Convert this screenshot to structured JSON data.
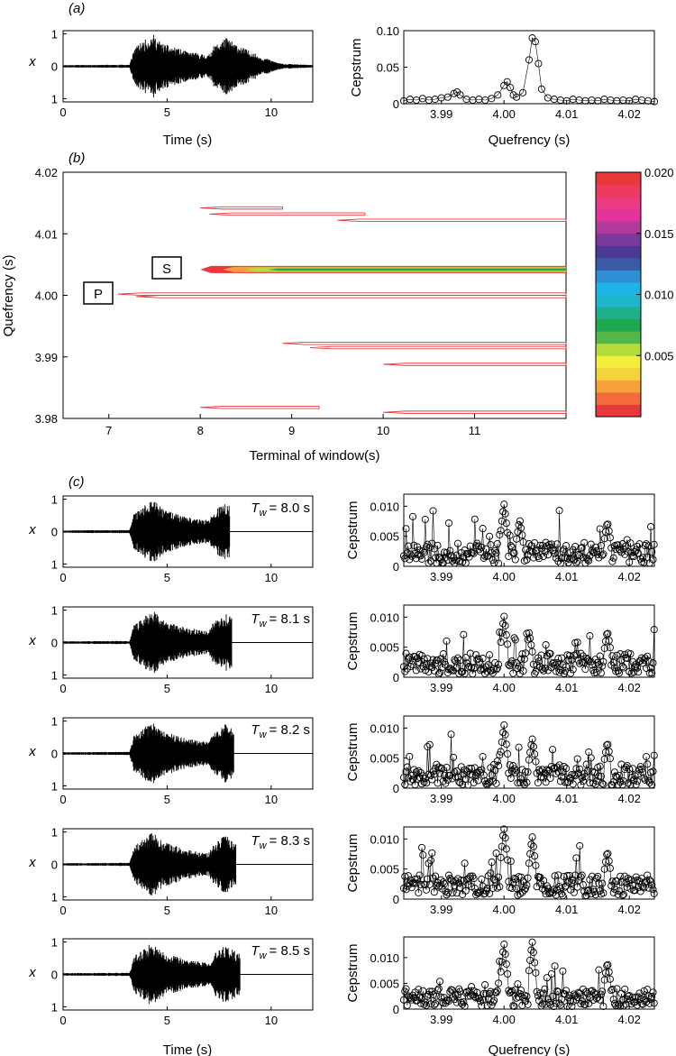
{
  "panel_labels": {
    "a": "(a)",
    "b": "(b)",
    "c": "(c)"
  },
  "chart_data": [
    {
      "id": "a-time",
      "type": "line",
      "xlabel": "Time (s)",
      "ylabel": "x",
      "xlim": [
        0,
        12
      ],
      "ylim": [
        -1.1,
        1.1
      ],
      "xticks": [
        "0",
        "5",
        "10"
      ],
      "yticks": [
        "1",
        "0",
        "1"
      ],
      "signal_end_s": 12,
      "envelope": [
        {
          "t": 0,
          "a": 0.04
        },
        {
          "t": 3.2,
          "a": 0.05
        },
        {
          "t": 3.4,
          "a": 0.55
        },
        {
          "t": 4.0,
          "a": 0.85
        },
        {
          "t": 4.3,
          "a": 1.0
        },
        {
          "t": 4.8,
          "a": 0.7
        },
        {
          "t": 6.0,
          "a": 0.45
        },
        {
          "t": 7.0,
          "a": 0.35
        },
        {
          "t": 7.2,
          "a": 0.6
        },
        {
          "t": 7.8,
          "a": 0.9
        },
        {
          "t": 8.3,
          "a": 0.7
        },
        {
          "t": 9.5,
          "a": 0.3
        },
        {
          "t": 10.5,
          "a": 0.08
        },
        {
          "t": 12,
          "a": 0.04
        }
      ]
    },
    {
      "id": "a-cepstrum",
      "type": "line",
      "xlabel": "Quefrency (s)",
      "ylabel": "Cepstrum",
      "xlim": [
        3.984,
        4.024
      ],
      "ylim": [
        0,
        0.1
      ],
      "xticks": [
        "3.99",
        "4.00",
        "4.01",
        "4.02"
      ],
      "yticks": [
        "0",
        "0.05",
        "0.10"
      ],
      "x": [
        3.984,
        3.985,
        3.986,
        3.987,
        3.988,
        3.989,
        3.99,
        3.991,
        3.992,
        3.9925,
        3.993,
        3.994,
        3.995,
        3.996,
        3.997,
        3.998,
        3.999,
        4.0,
        4.0005,
        4.001,
        4.0015,
        4.002,
        4.003,
        4.004,
        4.0045,
        4.005,
        4.0055,
        4.006,
        4.007,
        4.008,
        4.009,
        4.01,
        4.011,
        4.012,
        4.013,
        4.014,
        4.015,
        4.016,
        4.017,
        4.018,
        4.019,
        4.02,
        4.021,
        4.022,
        4.023,
        4.024
      ],
      "y": [
        0.004,
        0.006,
        0.005,
        0.007,
        0.005,
        0.006,
        0.008,
        0.009,
        0.014,
        0.016,
        0.012,
        0.006,
        0.005,
        0.006,
        0.005,
        0.007,
        0.012,
        0.025,
        0.03,
        0.022,
        0.012,
        0.009,
        0.015,
        0.06,
        0.09,
        0.085,
        0.055,
        0.02,
        0.008,
        0.006,
        0.005,
        0.004,
        0.006,
        0.005,
        0.004,
        0.005,
        0.004,
        0.006,
        0.005,
        0.004,
        0.005,
        0.004,
        0.006,
        0.005,
        0.004,
        0.003
      ]
    },
    {
      "id": "b-contour",
      "type": "heatmap",
      "xlabel": "Terminal of window(s)",
      "ylabel": "Quefrency (s)",
      "xlim": [
        6.5,
        12.0
      ],
      "ylim": [
        3.98,
        4.02
      ],
      "xticks": [
        "7",
        "8",
        "9",
        "10",
        "11"
      ],
      "yticks": [
        "4.02",
        "4.01",
        "4.00",
        "3.99",
        "3.98"
      ],
      "annotations": [
        "P",
        "S"
      ],
      "colorbar": {
        "min": 0,
        "max": 0.02,
        "ticks": [
          "0.020",
          "0.015",
          "0.010",
          "0.005"
        ],
        "colors": [
          "#e8383c",
          "#f26b3a",
          "#f7a03c",
          "#f3d23c",
          "#f4ee3c",
          "#b4db3c",
          "#54b848",
          "#1fa84f",
          "#1faf8c",
          "#1fb6cc",
          "#1fb4e6",
          "#2e8ed6",
          "#3a5aa8",
          "#4a3a94",
          "#7a3a9c",
          "#b23a9c",
          "#e2349c",
          "#ea3a80",
          "#ee3a60",
          "#e8383c"
        ]
      },
      "bands": [
        {
          "q": 4.0142,
          "start": 8.0,
          "end": 8.9,
          "level": "low"
        },
        {
          "q": 4.0122,
          "start": 9.5,
          "end": 12.0,
          "level": "low"
        },
        {
          "q": 4.0132,
          "start": 8.1,
          "end": 9.8,
          "level": "low"
        },
        {
          "q": 4.0042,
          "start": 8.0,
          "end": 12.0,
          "level": "high"
        },
        {
          "q": 4.0002,
          "start": 7.1,
          "end": 12.0,
          "level": "low"
        },
        {
          "q": 3.9998,
          "start": 7.3,
          "end": 12.0,
          "level": "low"
        },
        {
          "q": 3.9922,
          "start": 8.9,
          "end": 12.0,
          "level": "low"
        },
        {
          "q": 3.9915,
          "start": 9.2,
          "end": 12.0,
          "level": "low"
        },
        {
          "q": 3.9888,
          "start": 10.0,
          "end": 12.0,
          "level": "low"
        },
        {
          "q": 3.9818,
          "start": 8.0,
          "end": 9.3,
          "level": "low"
        },
        {
          "q": 3.981,
          "start": 10.0,
          "end": 12.0,
          "level": "low"
        }
      ]
    },
    {
      "id": "c-time-1",
      "type": "line",
      "ylabel": "x",
      "xlim": [
        0,
        12
      ],
      "ylim": [
        -1.1,
        1.1
      ],
      "xticks": [
        "0",
        "5",
        "10"
      ],
      "yticks": [
        "1",
        "0",
        "1"
      ],
      "annotation_var": "T",
      "annotation_sub": "w",
      "annotation_value": "= 8.0 s",
      "signal_end_s": 8.0
    },
    {
      "id": "c-cep-1",
      "type": "scatter",
      "ylabel": "Cepstrum",
      "xlim": [
        3.984,
        4.024
      ],
      "ylim": [
        0,
        0.012
      ],
      "xticks": [
        "3.99",
        "4.00",
        "4.01",
        "4.02"
      ],
      "yticks": [
        "0",
        "0.005",
        "0.010"
      ],
      "peaks": [
        {
          "q": 4.0,
          "v": 0.0105
        },
        {
          "q": 4.0025,
          "v": 0.0078
        },
        {
          "q": 4.0165,
          "v": 0.0075
        }
      ]
    },
    {
      "id": "c-time-2",
      "type": "line",
      "ylabel": "x",
      "xlim": [
        0,
        12
      ],
      "ylim": [
        -1.1,
        1.1
      ],
      "xticks": [
        "0",
        "5",
        "10"
      ],
      "yticks": [
        "1",
        "0",
        "1"
      ],
      "annotation_var": "T",
      "annotation_sub": "w",
      "annotation_value": "= 8.1 s",
      "signal_end_s": 8.1
    },
    {
      "id": "c-cep-2",
      "type": "scatter",
      "ylabel": "Cepstrum",
      "xlim": [
        3.984,
        4.024
      ],
      "ylim": [
        0,
        0.012
      ],
      "xticks": [
        "3.99",
        "4.00",
        "4.01",
        "4.02"
      ],
      "yticks": [
        "0",
        "0.005",
        "0.010"
      ],
      "peaks": [
        {
          "q": 4.0,
          "v": 0.0103
        },
        {
          "q": 4.004,
          "v": 0.0075
        },
        {
          "q": 4.0165,
          "v": 0.0078
        }
      ]
    },
    {
      "id": "c-time-3",
      "type": "line",
      "ylabel": "x",
      "xlim": [
        0,
        12
      ],
      "ylim": [
        -1.1,
        1.1
      ],
      "xticks": [
        "0",
        "5",
        "10"
      ],
      "yticks": [
        "1",
        "0",
        "1"
      ],
      "annotation_var": "T",
      "annotation_sub": "w",
      "annotation_value": "= 8.2 s",
      "signal_end_s": 8.2
    },
    {
      "id": "c-cep-3",
      "type": "scatter",
      "ylabel": "Cepstrum",
      "xlim": [
        3.984,
        4.024
      ],
      "ylim": [
        0,
        0.012
      ],
      "xticks": [
        "3.99",
        "4.00",
        "4.01",
        "4.02"
      ],
      "yticks": [
        "0",
        "0.005",
        "0.010"
      ],
      "peaks": [
        {
          "q": 4.0,
          "v": 0.0107
        },
        {
          "q": 4.0045,
          "v": 0.0083
        },
        {
          "q": 4.0165,
          "v": 0.0078
        }
      ]
    },
    {
      "id": "c-time-4",
      "type": "line",
      "ylabel": "x",
      "xlim": [
        0,
        12
      ],
      "ylim": [
        -1.1,
        1.1
      ],
      "xticks": [
        "0",
        "5",
        "10"
      ],
      "yticks": [
        "1",
        "0",
        "1"
      ],
      "annotation_var": "T",
      "annotation_sub": "w",
      "annotation_value": "= 8.3 s",
      "signal_end_s": 8.3
    },
    {
      "id": "c-cep-4",
      "type": "scatter",
      "ylabel": "Cepstrum",
      "xlim": [
        3.984,
        4.024
      ],
      "ylim": [
        0,
        0.012
      ],
      "xticks": [
        "3.99",
        "4.00",
        "4.01",
        "4.02"
      ],
      "yticks": [
        "0",
        "0.005",
        "0.010"
      ],
      "peaks": [
        {
          "q": 4.0,
          "v": 0.0122
        },
        {
          "q": 4.0045,
          "v": 0.0105
        },
        {
          "q": 4.0165,
          "v": 0.0081
        }
      ]
    },
    {
      "id": "c-time-5",
      "type": "line",
      "xlabel": "Time (s)",
      "ylabel": "x",
      "xlim": [
        0,
        12
      ],
      "ylim": [
        -1.1,
        1.1
      ],
      "xticks": [
        "0",
        "5",
        "10"
      ],
      "yticks": [
        "1",
        "0",
        "1"
      ],
      "annotation_var": "T",
      "annotation_sub": "w",
      "annotation_value": "= 8.5 s",
      "signal_end_s": 8.5
    },
    {
      "id": "c-cep-5",
      "type": "scatter",
      "xlabel": "Quefrency (s)",
      "ylabel": "Cepstrum",
      "xlim": [
        3.984,
        4.024
      ],
      "ylim": [
        0,
        0.014
      ],
      "xticks": [
        "3.99",
        "4.00",
        "4.01",
        "4.02"
      ],
      "yticks": [
        "0",
        "0.005",
        "0.010"
      ],
      "peaks": [
        {
          "q": 4.0,
          "v": 0.0128
        },
        {
          "q": 4.0045,
          "v": 0.0132
        },
        {
          "q": 4.0165,
          "v": 0.0092
        }
      ]
    }
  ]
}
